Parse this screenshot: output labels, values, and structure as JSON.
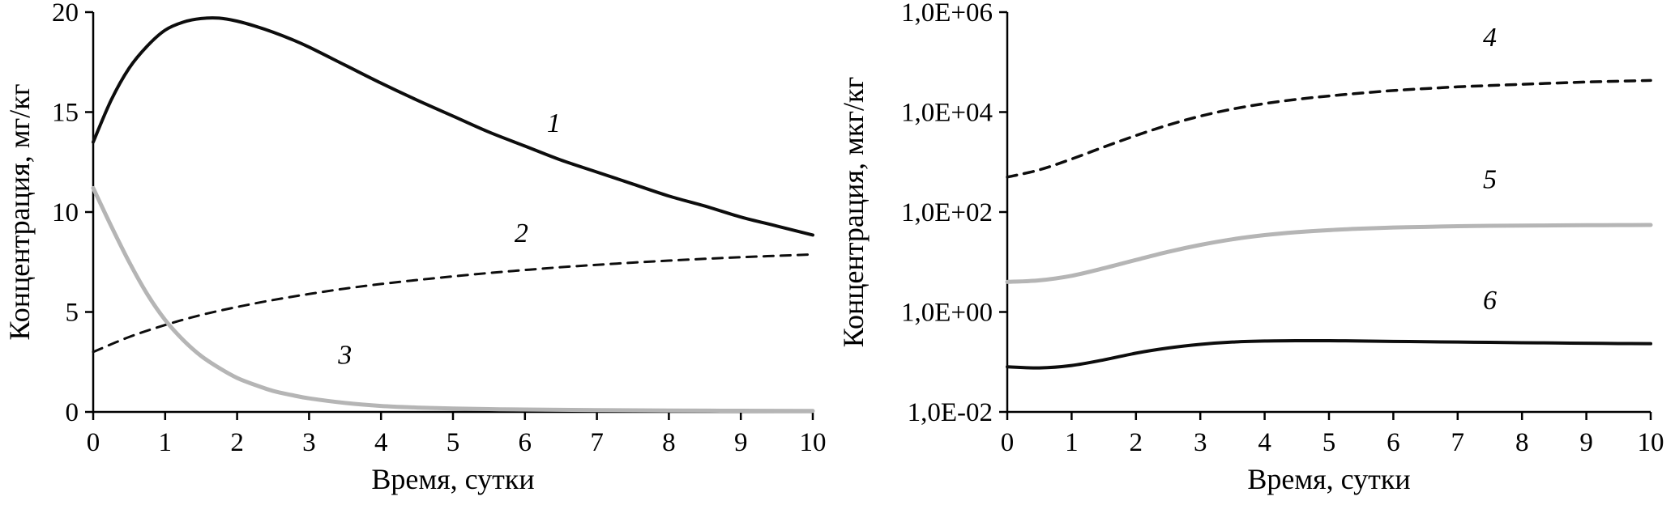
{
  "page": {
    "background": "#ffffff",
    "text_color": "#000000",
    "axis_color": "#000000"
  },
  "chart_data": [
    {
      "type": "line",
      "title": "",
      "xlabel": "Время, сутки",
      "ylabel": "Концентрация, мг/кг",
      "xlim": [
        0,
        10
      ],
      "ylim": [
        0,
        20
      ],
      "yscale": "linear",
      "grid": false,
      "legend": "inline-curve-labels",
      "xticks": [
        {
          "v": 0,
          "label": "0"
        },
        {
          "v": 1,
          "label": "1"
        },
        {
          "v": 2,
          "label": "2"
        },
        {
          "v": 3,
          "label": "3"
        },
        {
          "v": 4,
          "label": "4"
        },
        {
          "v": 5,
          "label": "5"
        },
        {
          "v": 6,
          "label": "6"
        },
        {
          "v": 7,
          "label": "7"
        },
        {
          "v": 8,
          "label": "8"
        },
        {
          "v": 9,
          "label": "9"
        },
        {
          "v": 10,
          "label": "10"
        }
      ],
      "yticks": [
        {
          "v": 0,
          "label": "0"
        },
        {
          "v": 5,
          "label": "5"
        },
        {
          "v": 10,
          "label": "10"
        },
        {
          "v": 15,
          "label": "15"
        },
        {
          "v": 20,
          "label": "20"
        }
      ],
      "series": [
        {
          "name": "1",
          "style": "solid",
          "color": "#0d0d0d",
          "width": 4,
          "dash": "",
          "x": [
            0,
            0.25,
            0.5,
            0.75,
            1,
            1.25,
            1.5,
            1.75,
            2,
            2.25,
            2.5,
            2.75,
            3,
            3.5,
            4,
            4.5,
            5,
            5.5,
            6,
            6.5,
            7,
            7.5,
            8,
            8.5,
            9,
            9.5,
            10
          ],
          "y": [
            13.5,
            15.6,
            17.2,
            18.3,
            19.1,
            19.5,
            19.68,
            19.7,
            19.55,
            19.3,
            19.0,
            18.65,
            18.25,
            17.35,
            16.45,
            15.6,
            14.8,
            14.0,
            13.3,
            12.6,
            12.0,
            11.4,
            10.8,
            10.3,
            9.75,
            9.3,
            8.85
          ]
        },
        {
          "name": "2",
          "style": "dashed",
          "color": "#0d0d0d",
          "width": 3,
          "dash": "12 9",
          "x": [
            0,
            0.5,
            1,
            1.5,
            2,
            2.5,
            3,
            3.5,
            4,
            4.5,
            5,
            5.5,
            6,
            6.5,
            7,
            7.5,
            8,
            8.5,
            9,
            9.5,
            10
          ],
          "y": [
            3.0,
            3.75,
            4.35,
            4.85,
            5.25,
            5.6,
            5.9,
            6.17,
            6.4,
            6.6,
            6.78,
            6.95,
            7.1,
            7.24,
            7.36,
            7.47,
            7.57,
            7.66,
            7.74,
            7.81,
            7.88
          ]
        },
        {
          "name": "3",
          "style": "solid",
          "color": "#b5b5b5",
          "width": 5,
          "dash": "",
          "x": [
            0,
            0.25,
            0.5,
            0.75,
            1,
            1.25,
            1.5,
            1.75,
            2,
            2.25,
            2.5,
            2.75,
            3,
            3.5,
            4,
            4.5,
            5,
            5.5,
            6,
            7,
            8,
            9,
            10
          ],
          "y": [
            11.2,
            9.3,
            7.5,
            5.9,
            4.6,
            3.6,
            2.8,
            2.2,
            1.7,
            1.35,
            1.05,
            0.85,
            0.68,
            0.45,
            0.3,
            0.22,
            0.17,
            0.14,
            0.12,
            0.09,
            0.07,
            0.06,
            0.05
          ]
        }
      ],
      "labels": [
        {
          "text": "1",
          "x": 6.4,
          "y": 14.0
        },
        {
          "text": "2",
          "x": 5.95,
          "y": 8.5
        },
        {
          "text": "3",
          "x": 3.5,
          "y": 2.4
        }
      ]
    },
    {
      "type": "line",
      "title": "",
      "xlabel": "Время, сутки",
      "ylabel": "Концентрация, мкг/кг",
      "xlim": [
        0,
        10
      ],
      "ylim": [
        0.01,
        1000000
      ],
      "yscale": "log",
      "grid": false,
      "legend": "inline-curve-labels",
      "xticks": [
        {
          "v": 0,
          "label": "0"
        },
        {
          "v": 1,
          "label": "1"
        },
        {
          "v": 2,
          "label": "2"
        },
        {
          "v": 3,
          "label": "3"
        },
        {
          "v": 4,
          "label": "4"
        },
        {
          "v": 5,
          "label": "5"
        },
        {
          "v": 6,
          "label": "6"
        },
        {
          "v": 7,
          "label": "7"
        },
        {
          "v": 8,
          "label": "8"
        },
        {
          "v": 9,
          "label": "9"
        },
        {
          "v": 10,
          "label": "10"
        }
      ],
      "yticks": [
        {
          "v": 0.01,
          "label": "1,0E-02"
        },
        {
          "v": 1,
          "label": "1,0E+00"
        },
        {
          "v": 100,
          "label": "1,0E+02"
        },
        {
          "v": 10000,
          "label": "1,0E+04"
        },
        {
          "v": 1000000,
          "label": "1,0E+06"
        }
      ],
      "series": [
        {
          "name": "4",
          "style": "dashed",
          "color": "#0d0d0d",
          "width": 3.5,
          "dash": "12 9",
          "x": [
            0,
            0.5,
            1,
            1.5,
            2,
            2.5,
            3,
            3.5,
            4,
            4.5,
            5,
            5.5,
            6,
            6.5,
            7,
            7.5,
            8,
            8.5,
            9,
            9.5,
            10
          ],
          "y": [
            500,
            700,
            1150,
            2000,
            3400,
            5500,
            8300,
            11500,
            14800,
            18000,
            21000,
            24000,
            27000,
            29500,
            32000,
            34000,
            36000,
            38000,
            40000,
            41500,
            43000
          ]
        },
        {
          "name": "5",
          "style": "solid",
          "color": "#b5b5b5",
          "width": 5,
          "dash": "",
          "x": [
            0,
            0.5,
            1,
            1.5,
            2,
            2.5,
            3,
            3.5,
            4,
            4.5,
            5,
            5.5,
            6,
            6.5,
            7,
            7.5,
            8,
            8.5,
            9,
            9.5,
            10
          ],
          "y": [
            4,
            4.3,
            5.3,
            7.5,
            11,
            16,
            22,
            28.5,
            34.5,
            39.5,
            43.5,
            46.5,
            49,
            50.5,
            52,
            53,
            53.5,
            54,
            54.5,
            54.8,
            55
          ]
        },
        {
          "name": "6",
          "style": "solid",
          "color": "#0d0d0d",
          "width": 4,
          "dash": "",
          "x": [
            0,
            0.5,
            1,
            1.5,
            2,
            2.5,
            3,
            3.5,
            4,
            4.5,
            5,
            5.5,
            6,
            6.5,
            7,
            7.5,
            8,
            8.5,
            9,
            9.5,
            10
          ],
          "y": [
            0.08,
            0.076,
            0.085,
            0.11,
            0.15,
            0.19,
            0.225,
            0.25,
            0.262,
            0.266,
            0.266,
            0.263,
            0.258,
            0.254,
            0.25,
            0.247,
            0.243,
            0.24,
            0.237,
            0.234,
            0.232
          ]
        }
      ],
      "labels": [
        {
          "text": "4",
          "x": 7.5,
          "y": 210000
        },
        {
          "text": "5",
          "x": 7.5,
          "y": 300
        },
        {
          "text": "6",
          "x": 7.5,
          "y": 1.15
        }
      ]
    }
  ]
}
